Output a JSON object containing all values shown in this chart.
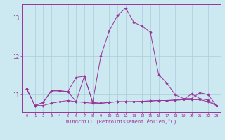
{
  "title": "",
  "xlabel": "Windchill (Refroidissement éolien,°C)",
  "ylabel": "",
  "background_color": "#cce8f0",
  "grid_color": "#aaccdd",
  "line_color": "#993399",
  "xlim": [
    -0.5,
    23.5
  ],
  "ylim": [
    10.55,
    13.35
  ],
  "yticks": [
    11,
    12,
    13
  ],
  "xticks": [
    0,
    1,
    2,
    3,
    4,
    5,
    6,
    7,
    8,
    9,
    10,
    11,
    12,
    13,
    14,
    15,
    16,
    17,
    18,
    19,
    20,
    21,
    22,
    23
  ],
  "line1_x": [
    0,
    1,
    2,
    3,
    4,
    5,
    6,
    7,
    8,
    9,
    10,
    11,
    12,
    13,
    14,
    15,
    16,
    17,
    18,
    19,
    20,
    21,
    22,
    23
  ],
  "line1_y": [
    11.15,
    10.72,
    10.72,
    10.78,
    10.82,
    10.85,
    10.82,
    10.8,
    10.78,
    10.78,
    10.8,
    10.82,
    10.82,
    10.82,
    10.83,
    10.84,
    10.85,
    10.85,
    10.86,
    10.87,
    10.87,
    10.87,
    10.82,
    10.72
  ],
  "line2_x": [
    0,
    1,
    2,
    3,
    4,
    5,
    6,
    7,
    8,
    9,
    10,
    11,
    12,
    13,
    14,
    15,
    16,
    17,
    18,
    19,
    20,
    21,
    22,
    23
  ],
  "line2_y": [
    11.15,
    10.72,
    10.8,
    11.1,
    11.1,
    11.08,
    11.45,
    11.48,
    10.8,
    12.0,
    12.65,
    13.05,
    13.25,
    12.88,
    12.78,
    12.62,
    11.52,
    11.3,
    11.0,
    10.9,
    10.9,
    11.05,
    11.0,
    10.72
  ],
  "line3_x": [
    0,
    1,
    2,
    3,
    4,
    5,
    6,
    7,
    8,
    9,
    10,
    11,
    12,
    13,
    14,
    15,
    16,
    17,
    18,
    19,
    20,
    21,
    22,
    23
  ],
  "line3_y": [
    11.15,
    10.72,
    10.8,
    11.1,
    11.1,
    11.08,
    10.82,
    11.48,
    10.8,
    10.78,
    10.8,
    10.82,
    10.82,
    10.82,
    10.83,
    10.84,
    10.85,
    10.85,
    10.86,
    10.87,
    11.02,
    10.9,
    10.86,
    10.72
  ]
}
